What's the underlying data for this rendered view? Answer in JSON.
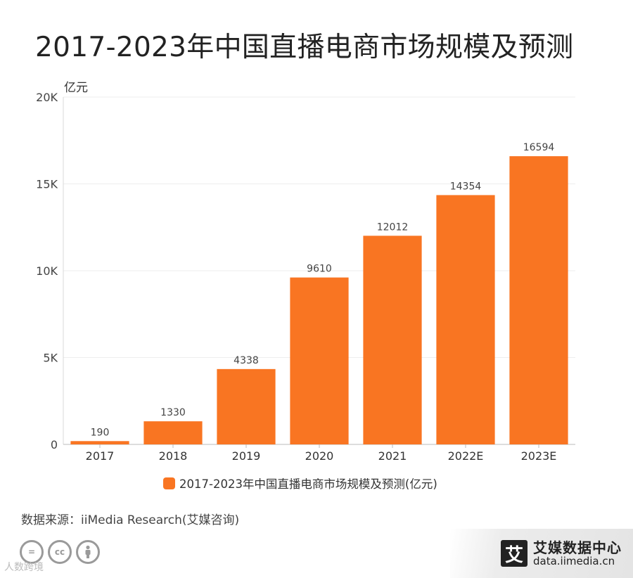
{
  "title": "2017-2023年中国直播电商市场规模及预测",
  "chart_data": {
    "type": "bar",
    "categories": [
      "2017",
      "2018",
      "2019",
      "2020",
      "2021",
      "2022E",
      "2023E"
    ],
    "series": [
      {
        "name": "2017-2023年中国直播电商市场规模及预测(亿元)",
        "values": [
          190,
          1330,
          4338,
          9610,
          12012,
          14354,
          16594
        ],
        "color": "#f97522"
      }
    ],
    "ylabel": "亿元",
    "ylim": [
      0,
      20000
    ],
    "yticks": [
      0,
      5000,
      10000,
      15000,
      20000
    ],
    "ytick_labels": [
      "0",
      "5K",
      "10K",
      "15K",
      "20K"
    ],
    "grid": true,
    "legend_position": "bottom"
  },
  "legend": {
    "label": "2017-2023年中国直播电商市场规模及预测(亿元)",
    "color": "#f97522"
  },
  "source": "数据来源：iiMedia Research(艾媒咨询)",
  "license_icons": [
    "=",
    "cc",
    "person"
  ],
  "watermark": "人数跨境",
  "brand": {
    "logo": "艾",
    "name": "艾媒数据中心",
    "url": "data.iimedia.cn"
  }
}
